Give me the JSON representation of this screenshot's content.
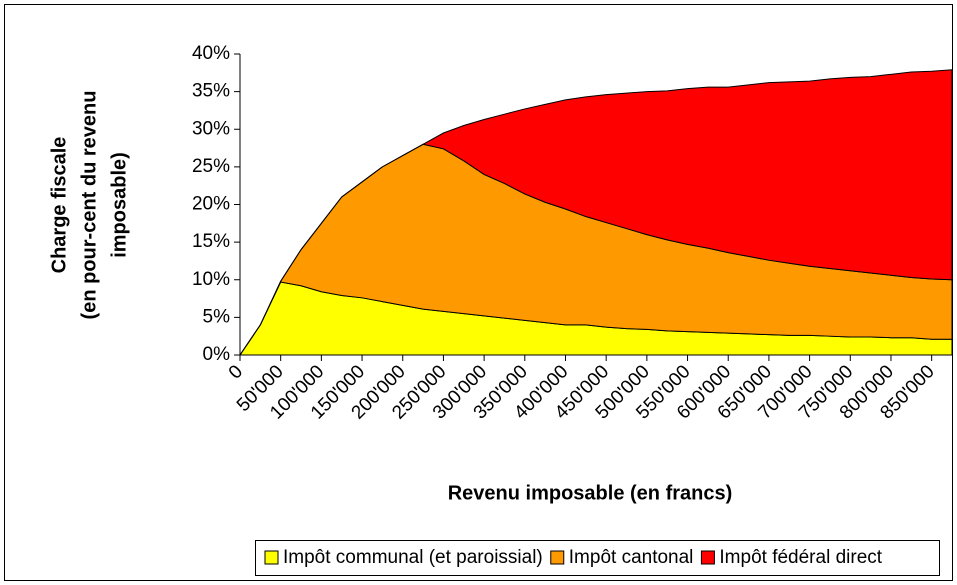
{
  "chart_data": {
    "type": "stacked_area",
    "xlabel": "Revenu imposable (en francs)",
    "ylabel": [
      "Charge fiscale",
      "(en pour-cent du revenu",
      "imposable)"
    ],
    "x": [
      0,
      25000,
      50000,
      75000,
      100000,
      125000,
      150000,
      175000,
      200000,
      225000,
      250000,
      275000,
      300000,
      325000,
      350000,
      375000,
      400000,
      425000,
      450000,
      475000,
      500000,
      525000,
      550000,
      575000,
      600000,
      625000,
      650000,
      675000,
      700000,
      725000,
      750000,
      775000,
      800000,
      825000,
      850000,
      875000
    ],
    "xlim": [
      0,
      875000
    ],
    "xticks": [
      0,
      {
        "value": 50000,
        "label": "50'000"
      },
      {
        "value": 100000,
        "label": "100'000"
      },
      {
        "value": 150000,
        "label": "150'000"
      },
      {
        "value": 200000,
        "label": "200'000"
      },
      {
        "value": 250000,
        "label": "250'000"
      },
      {
        "value": 300000,
        "label": "300'000"
      },
      {
        "value": 350000,
        "label": "350'000"
      },
      {
        "value": 400000,
        "label": "400'000"
      },
      {
        "value": 450000,
        "label": "450'000"
      },
      {
        "value": 500000,
        "label": "500'000"
      },
      {
        "value": 550000,
        "label": "550'000"
      },
      {
        "value": 600000,
        "label": "600'000"
      },
      {
        "value": 650000,
        "label": "650'000"
      },
      {
        "value": 700000,
        "label": "700'000"
      },
      {
        "value": 750000,
        "label": "750'000"
      },
      {
        "value": 800000,
        "label": "800'000"
      },
      {
        "value": 850000,
        "label": "850'000"
      }
    ],
    "ylim": [
      0,
      40
    ],
    "yticks": [
      {
        "value": 0,
        "label": "0%"
      },
      {
        "value": 5,
        "label": "5%"
      },
      {
        "value": 10,
        "label": "10%"
      },
      {
        "value": 15,
        "label": "15%"
      },
      {
        "value": 20,
        "label": "20%"
      },
      {
        "value": 25,
        "label": "25%"
      },
      {
        "value": 30,
        "label": "30%"
      },
      {
        "value": 35,
        "label": "35%"
      },
      {
        "value": 40,
        "label": "40%"
      }
    ],
    "grid": false,
    "legend": "bottom",
    "series": [
      {
        "name": "Impôt communal (et paroissial)",
        "color": "#ffff00",
        "values": [
          0,
          4,
          9.7,
          9.2,
          8.4,
          7.9,
          7.6,
          7.1,
          6.6,
          6.1,
          5.8,
          5.5,
          5.2,
          4.9,
          4.6,
          4.3,
          4.0,
          4.0,
          3.7,
          3.5,
          3.4,
          3.2,
          3.1,
          3.0,
          2.9,
          2.8,
          2.7,
          2.6,
          2.6,
          2.5,
          2.4,
          2.4,
          2.3,
          2.3,
          2.1,
          2.1
        ]
      },
      {
        "name": "Impôt cantonal",
        "color": "#ff9900",
        "values": [
          0,
          0,
          0.1,
          4.8,
          9.1,
          13.1,
          15.4,
          17.9,
          19.9,
          21.9,
          21.6,
          20.3,
          18.8,
          17.9,
          16.8,
          16.0,
          15.4,
          14.4,
          13.9,
          13.3,
          12.6,
          12.1,
          11.6,
          11.2,
          10.7,
          10.3,
          9.9,
          9.6,
          9.2,
          9.0,
          8.8,
          8.5,
          8.3,
          8.0,
          8.0,
          7.9
        ]
      },
      {
        "name": "Impôt fédéral direct",
        "color": "#ff0000",
        "values": [
          0,
          0,
          0,
          0,
          0,
          0,
          0,
          0,
          0,
          0,
          2.1,
          4.7,
          7.3,
          9.2,
          11.3,
          13.0,
          14.5,
          15.9,
          17.0,
          18.0,
          19.0,
          19.8,
          20.7,
          21.4,
          22.0,
          22.8,
          23.6,
          24.1,
          24.6,
          25.2,
          25.7,
          26.1,
          26.7,
          27.3,
          27.6,
          27.9
        ]
      }
    ]
  }
}
